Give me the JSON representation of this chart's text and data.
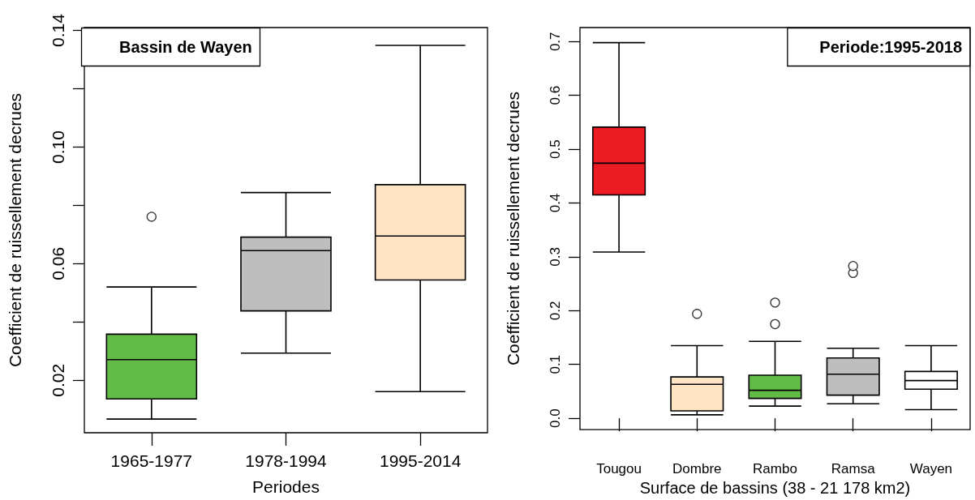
{
  "chart_data": [
    {
      "type": "box",
      "title": "Bassin de Wayen",
      "xlabel": "Periodes",
      "ylabel": "Coefficient de ruissellement decrues",
      "categories": [
        "1965-1977",
        "1978-1994",
        "1995-2014"
      ],
      "boxes": [
        {
          "low": 0.0067,
          "q1": 0.0136,
          "median": 0.0271,
          "q3": 0.0358,
          "high": 0.052,
          "outliers": [
            0.0761
          ]
        },
        {
          "low": 0.0293,
          "q1": 0.0438,
          "median": 0.0645,
          "q3": 0.0691,
          "high": 0.0844
        },
        {
          "low": 0.0161,
          "q1": 0.0544,
          "median": 0.0695,
          "q3": 0.0871,
          "high": 0.1349
        }
      ],
      "colors": [
        "#62bb46",
        "#bebebe",
        "#ffe4c4"
      ],
      "ylim": [
        0.002,
        0.141
      ],
      "yticks": [
        {
          "value": 0.02,
          "label": "0.02"
        },
        {
          "value": 0.04,
          "label": null
        },
        {
          "value": 0.06,
          "label": "0.06"
        },
        {
          "value": 0.08,
          "label": null
        },
        {
          "value": 0.1,
          "label": "0.10"
        },
        {
          "value": 0.12,
          "label": null
        },
        {
          "value": 0.14,
          "label": "0.14"
        }
      ]
    },
    {
      "type": "box",
      "title": "Periode:1995-2018",
      "xlabel": "Surface de bassins (38 - 21 178 km2)",
      "ylabel": "Coefficient de ruissellement decrues",
      "categories": [
        "Tougou",
        "Dombre",
        "Rambo",
        "Ramsa",
        "Wayen"
      ],
      "boxes": [
        {
          "low": 0.309,
          "q1": 0.415,
          "median": 0.474,
          "q3": 0.541,
          "high": 0.698
        },
        {
          "low": 0.0065,
          "q1": 0.0137,
          "median": 0.063,
          "q3": 0.0768,
          "high": 0.135,
          "outliers": [
            0.194
          ]
        },
        {
          "low": 0.0226,
          "q1": 0.037,
          "median": 0.052,
          "q3": 0.08,
          "high": 0.143,
          "outliers": [
            0.175,
            0.215
          ]
        },
        {
          "low": 0.027,
          "q1": 0.043,
          "median": 0.082,
          "q3": 0.112,
          "high": 0.13,
          "outliers": [
            0.27,
            0.283
          ]
        },
        {
          "low": 0.016,
          "q1": 0.054,
          "median": 0.07,
          "q3": 0.087,
          "high": 0.135
        }
      ],
      "colors": [
        "#ed1c24",
        "#ffe4c4",
        "#62bb46",
        "#bebebe",
        "#ffffff"
      ],
      "ylim": [
        -0.021,
        0.726
      ],
      "yticks": [
        {
          "value": 0,
          "label": "0.0"
        },
        {
          "value": 0.1,
          "label": "0.1"
        },
        {
          "value": 0.2,
          "label": "0.2"
        },
        {
          "value": 0.3,
          "label": "0.3"
        },
        {
          "value": 0.4,
          "label": "0.4"
        },
        {
          "value": 0.5,
          "label": "0.5"
        },
        {
          "value": 0.6,
          "label": "0.6"
        },
        {
          "value": 0.7,
          "label": "0.7"
        }
      ]
    }
  ]
}
